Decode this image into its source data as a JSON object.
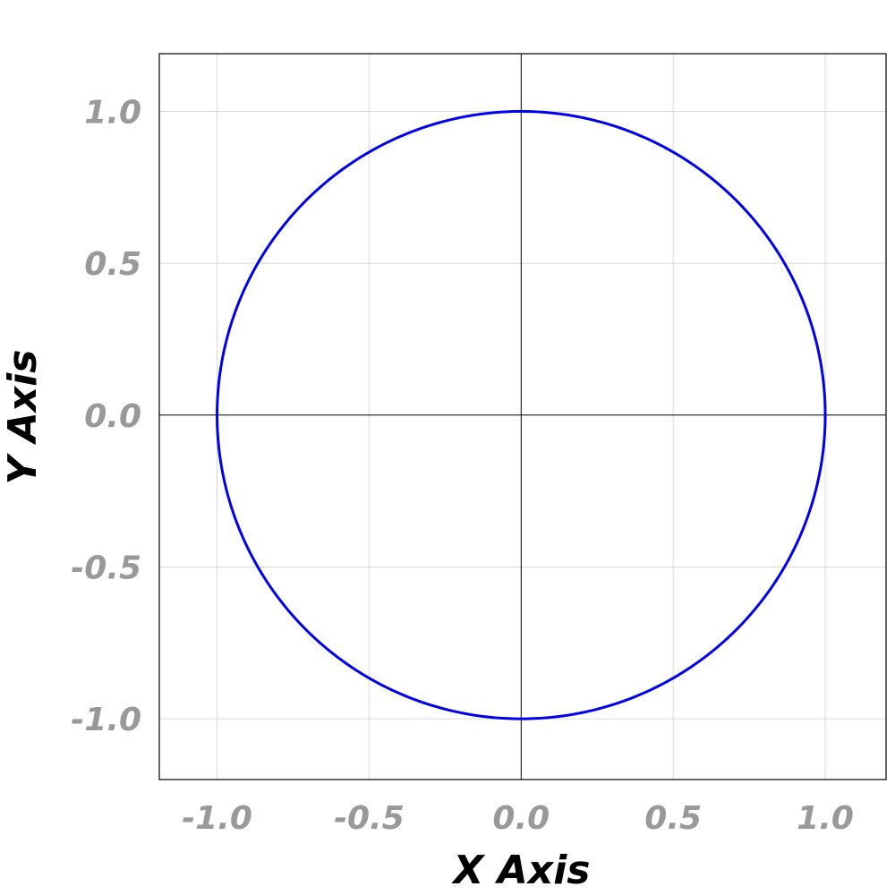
{
  "chart_data": {
    "type": "line",
    "xlabel": "X Axis",
    "ylabel": "Y Axis",
    "xlim": [
      -1.19,
      1.2
    ],
    "ylim": [
      -1.2,
      1.19
    ],
    "grid": true,
    "zero_lines": true,
    "x_ticks": [
      -1.0,
      -0.5,
      0.0,
      0.5,
      1.0
    ],
    "y_ticks": [
      1.0,
      0.5,
      0.0,
      -0.5,
      -1.0
    ],
    "x_tick_labels": [
      "-1.0",
      "-0.5",
      "0.0",
      "0.5",
      "1.0"
    ],
    "y_tick_labels": [
      "1.0",
      "0.5",
      "0.0",
      "-0.5",
      "-1.0"
    ],
    "series": [
      {
        "type": "parametric",
        "equation": "x = cos(t), y = sin(t), 0 ≤ t ≤ 2π",
        "color": "#0000ee",
        "points": [
          [
            1.0,
            0.0
          ],
          [
            0.966,
            0.259
          ],
          [
            0.866,
            0.5
          ],
          [
            0.707,
            0.707
          ],
          [
            0.5,
            0.866
          ],
          [
            0.259,
            0.966
          ],
          [
            0.0,
            1.0
          ],
          [
            -0.259,
            0.966
          ],
          [
            -0.5,
            0.866
          ],
          [
            -0.707,
            0.707
          ],
          [
            -0.866,
            0.5
          ],
          [
            -0.966,
            0.259
          ],
          [
            -1.0,
            0.0
          ],
          [
            -0.966,
            -0.259
          ],
          [
            -0.866,
            -0.5
          ],
          [
            -0.707,
            -0.707
          ],
          [
            -0.5,
            -0.866
          ],
          [
            -0.259,
            -0.966
          ],
          [
            0.0,
            -1.0
          ],
          [
            0.259,
            -0.966
          ],
          [
            0.5,
            -0.866
          ],
          [
            0.707,
            -0.707
          ],
          [
            0.866,
            -0.5
          ],
          [
            0.966,
            -0.259
          ]
        ]
      }
    ]
  },
  "colors": {
    "tick_label": "#999999",
    "axis_title": "#000000",
    "grid": "#d9d9d9",
    "series": "#0000ee"
  }
}
